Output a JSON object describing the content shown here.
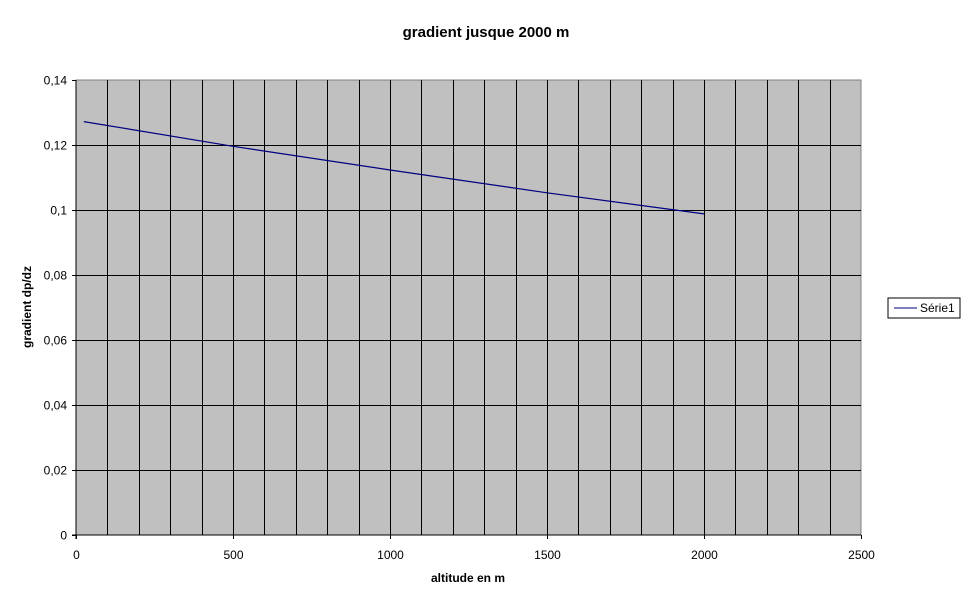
{
  "chart_data": {
    "type": "line",
    "title": "gradient jusque 2000 m",
    "xlabel": "altitude en m",
    "ylabel": "gradient dp/dz",
    "xlim": [
      0,
      2500
    ],
    "ylim": [
      0,
      0.14
    ],
    "x_ticks": [
      0,
      500,
      1000,
      1500,
      2000,
      2500
    ],
    "x_tick_labels": [
      "0",
      "500",
      "1000",
      "1500",
      "2000",
      "2500"
    ],
    "x_minor_gridlines_every": 100,
    "y_ticks": [
      0,
      0.02,
      0.04,
      0.06,
      0.08,
      0.1,
      0.12,
      0.14
    ],
    "y_tick_labels": [
      "0",
      "0,02",
      "0,04",
      "0,06",
      "0,08",
      "0,1",
      "0,12",
      "0,14"
    ],
    "grid": true,
    "plot_background": "#c0c0c0",
    "grid_color": "#000000",
    "legend_position": "right",
    "series": [
      {
        "name": "Série1",
        "color": "#000080",
        "x": [
          25,
          500,
          1000,
          1500,
          2000
        ],
        "y": [
          0.1272,
          0.1196,
          0.1123,
          0.1053,
          0.0988
        ]
      }
    ]
  }
}
